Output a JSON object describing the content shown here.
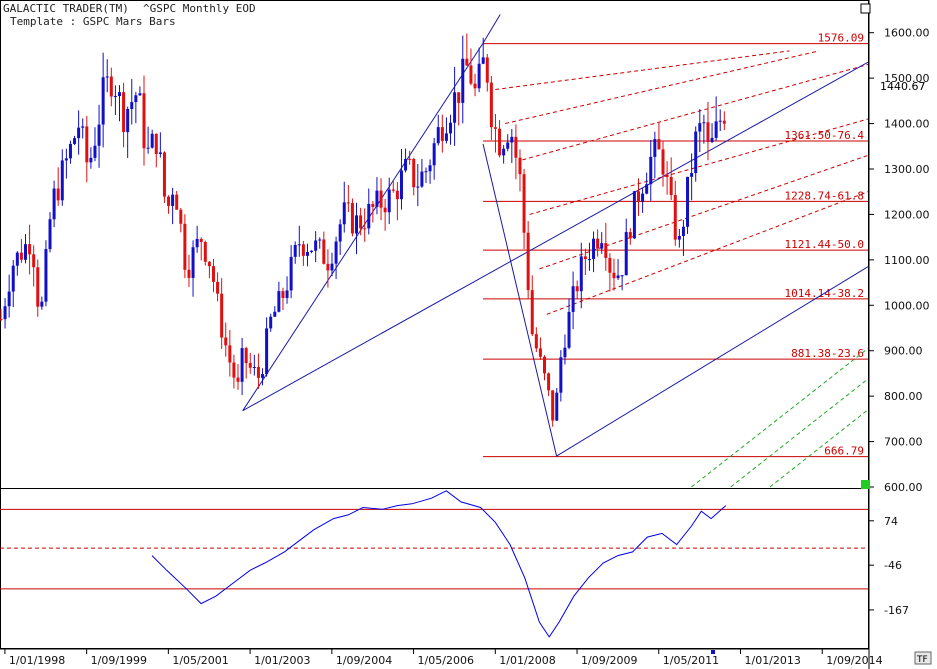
{
  "header": {
    "app_title": "GALACTIC TRADER(TM)",
    "symbol_line": "^GSPC Monthly EOD",
    "template": "Template : GSPC Mars Bars"
  },
  "buttons": {
    "corner_top": "□",
    "tf": "TF"
  },
  "colors": {
    "up_bar": "#1010c8",
    "down_bar": "#e01010",
    "fib_line": "#cc0000",
    "channel_line": "#1a1aaa",
    "green_line": "#22aa22",
    "osc_line": "#0000ee",
    "marker": "#22cc22"
  },
  "chart_data": [
    {
      "type": "candlestick",
      "title": "^GSPC Monthly EOD",
      "ylim": [
        600,
        1650
      ],
      "y_ticks": [
        1600,
        1500,
        1400,
        1300,
        1200,
        1100,
        1000,
        900,
        800,
        700,
        600
      ],
      "y_tick_labels": [
        "1600.00",
        "1500.00",
        "1400.00",
        "1300.00",
        "1200.00",
        "1100.00",
        "1000.00",
        "900.00",
        "800.00",
        "700.00",
        "600.00"
      ],
      "x_tick_labels": [
        "1/01/1998",
        "1/09/1999",
        "1/05/2001",
        "1/01/2003",
        "1/09/2004",
        "1/05/2006",
        "1/01/2008",
        "1/09/2009",
        "1/05/2011",
        "1/01/2013",
        "1/09/2014"
      ],
      "x_tick_dates": [
        1998.0,
        1999.667,
        2001.333,
        2003.0,
        2004.667,
        2006.333,
        2008.0,
        2009.667,
        2011.333,
        2013.0,
        2014.667
      ],
      "xlim": [
        1997.9,
        2015.6
      ],
      "current_value": "1440.67",
      "price_path": [
        [
          1997.92,
          970
        ],
        [
          1998.15,
          1090
        ],
        [
          1998.55,
          1150
        ],
        [
          1998.72,
          960
        ],
        [
          1998.95,
          1220
        ],
        [
          1999.3,
          1330
        ],
        [
          1999.5,
          1400
        ],
        [
          1999.7,
          1300
        ],
        [
          2000.0,
          1460
        ],
        [
          2000.2,
          1510
        ],
        [
          2000.4,
          1420
        ],
        [
          2000.7,
          1470
        ],
        [
          2000.9,
          1330
        ],
        [
          2001.1,
          1370
        ],
        [
          2001.3,
          1200
        ],
        [
          2001.45,
          1280
        ],
        [
          2001.7,
          1080
        ],
        [
          2002.0,
          1150
        ],
        [
          2002.2,
          1090
        ],
        [
          2002.4,
          960
        ],
        [
          2002.55,
          890
        ],
        [
          2002.75,
          815
        ],
        [
          2002.85,
          890
        ],
        [
          2003.0,
          860
        ],
        [
          2003.2,
          840
        ],
        [
          2003.4,
          960
        ],
        [
          2003.7,
          1030
        ],
        [
          2004.0,
          1140
        ],
        [
          2004.3,
          1130
        ],
        [
          2004.6,
          1100
        ],
        [
          2004.9,
          1200
        ],
        [
          2005.2,
          1180
        ],
        [
          2005.4,
          1200
        ],
        [
          2005.7,
          1230
        ],
        [
          2005.9,
          1240
        ],
        [
          2006.2,
          1300
        ],
        [
          2006.4,
          1270
        ],
        [
          2006.6,
          1300
        ],
        [
          2006.9,
          1400
        ],
        [
          2007.2,
          1460
        ],
        [
          2007.45,
          1530
        ],
        [
          2007.6,
          1460
        ],
        [
          2007.8,
          1550
        ],
        [
          2007.95,
          1400
        ],
        [
          2008.1,
          1360
        ],
        [
          2008.3,
          1400
        ],
        [
          2008.5,
          1280
        ],
        [
          2008.75,
          940
        ],
        [
          2008.9,
          880
        ],
        [
          2009.05,
          820
        ],
        [
          2009.2,
          740
        ],
        [
          2009.35,
          900
        ],
        [
          2009.6,
          1020
        ],
        [
          2009.8,
          1100
        ],
        [
          2010.0,
          1140
        ],
        [
          2010.2,
          1170
        ],
        [
          2010.35,
          1080
        ],
        [
          2010.55,
          1070
        ],
        [
          2010.75,
          1180
        ],
        [
          2010.95,
          1260
        ],
        [
          2011.2,
          1330
        ],
        [
          2011.4,
          1330
        ],
        [
          2011.6,
          1200
        ],
        [
          2011.75,
          1130
        ],
        [
          2011.95,
          1270
        ],
        [
          2012.1,
          1370
        ],
        [
          2012.25,
          1400
        ],
        [
          2012.35,
          1330
        ],
        [
          2012.5,
          1380
        ],
        [
          2012.62,
          1420
        ],
        [
          2012.72,
          1440
        ]
      ],
      "fib_levels": [
        {
          "price": 1576.09,
          "label": "1576.09"
        },
        {
          "price": 1361.5,
          "label": "1361.50-76.4"
        },
        {
          "price": 1228.74,
          "label": "1228.74-61.8"
        },
        {
          "price": 1121.44,
          "label": "1121.44-50.0"
        },
        {
          "price": 1014.14,
          "label": "1014.14-38.2"
        },
        {
          "price": 881.38,
          "label": "881.38-23.6"
        },
        {
          "price": 666.79,
          "label": "666.79"
        }
      ],
      "fib_x_start": 2007.75,
      "channel_lines": [
        {
          "from": [
            2002.85,
            768
          ],
          "to": [
            2007.75,
            1577
          ]
        },
        {
          "from": [
            2007.75,
            1577
          ],
          "to": [
            2015.6,
            1530
          ]
        },
        {
          "from": [
            2008.0,
            1370
          ],
          "to": [
            2015.6,
            1530
          ]
        },
        {
          "from": [
            2009.25,
            668
          ],
          "to": [
            2015.6,
            1090
          ]
        },
        {
          "from": [
            2007.75,
            1355
          ],
          "to": [
            2009.3,
            700
          ]
        }
      ],
      "channel_upper": {
        "from": [
          2002.85,
          768
        ],
        "to": [
          2007.75,
          1577
        ]
      },
      "channel_top_slope_line": {
        "from": [
          2002.85,
          768
        ],
        "to": [
          2015.6,
          1535
        ]
      },
      "channel_bottom_line": {
        "from": [
          2009.25,
          668
        ],
        "to": [
          2015.6,
          1085
        ]
      },
      "red_dashed_lines": [
        {
          "from": [
            2008.0,
            1475
          ],
          "to": [
            2014.0,
            1560
          ]
        },
        {
          "from": [
            2008.2,
            1400
          ],
          "to": [
            2014.6,
            1560
          ]
        },
        {
          "from": [
            2008.55,
            1320
          ],
          "to": [
            2015.6,
            1530
          ]
        },
        {
          "from": [
            2008.7,
            1200
          ],
          "to": [
            2015.6,
            1410
          ]
        },
        {
          "from": [
            2008.9,
            1080
          ],
          "to": [
            2015.6,
            1330
          ]
        },
        {
          "from": [
            2009.05,
            980
          ],
          "to": [
            2015.6,
            1250
          ]
        }
      ],
      "green_dashed_lines": [
        {
          "from": [
            2012.0,
            600
          ],
          "to": [
            2015.6,
            905
          ]
        },
        {
          "from": [
            2012.8,
            600
          ],
          "to": [
            2015.6,
            838
          ]
        },
        {
          "from": [
            2013.6,
            600
          ],
          "to": [
            2015.6,
            770
          ]
        }
      ]
    },
    {
      "type": "line",
      "title": "",
      "ylim": [
        -270,
        160
      ],
      "y_ticks": [
        74,
        -46,
        -167
      ],
      "y_tick_labels": [
        "74",
        "-46",
        "-167"
      ],
      "hlines": [
        {
          "value": 105,
          "style": "solid"
        },
        {
          "value": 0,
          "style": "dashed"
        },
        {
          "value": -110,
          "style": "solid"
        }
      ],
      "x": [
        2001.0,
        2001.3,
        2001.7,
        2002.0,
        2002.3,
        2002.7,
        2003.0,
        2003.3,
        2003.7,
        2004.0,
        2004.3,
        2004.7,
        2005.0,
        2005.3,
        2005.7,
        2006.0,
        2006.3,
        2006.7,
        2007.0,
        2007.3,
        2007.7,
        2008.0,
        2008.3,
        2008.6,
        2008.9,
        2009.1,
        2009.3,
        2009.6,
        2009.9,
        2010.2,
        2010.5,
        2010.8,
        2011.1,
        2011.4,
        2011.7,
        2012.0,
        2012.2,
        2012.4,
        2012.7
      ],
      "values": [
        -20,
        -60,
        -110,
        -150,
        -130,
        -90,
        -60,
        -40,
        -10,
        20,
        50,
        80,
        90,
        110,
        105,
        115,
        120,
        135,
        155,
        125,
        110,
        70,
        10,
        -80,
        -200,
        -240,
        -200,
        -130,
        -80,
        -40,
        -20,
        -10,
        30,
        40,
        10,
        60,
        100,
        80,
        115
      ]
    }
  ]
}
